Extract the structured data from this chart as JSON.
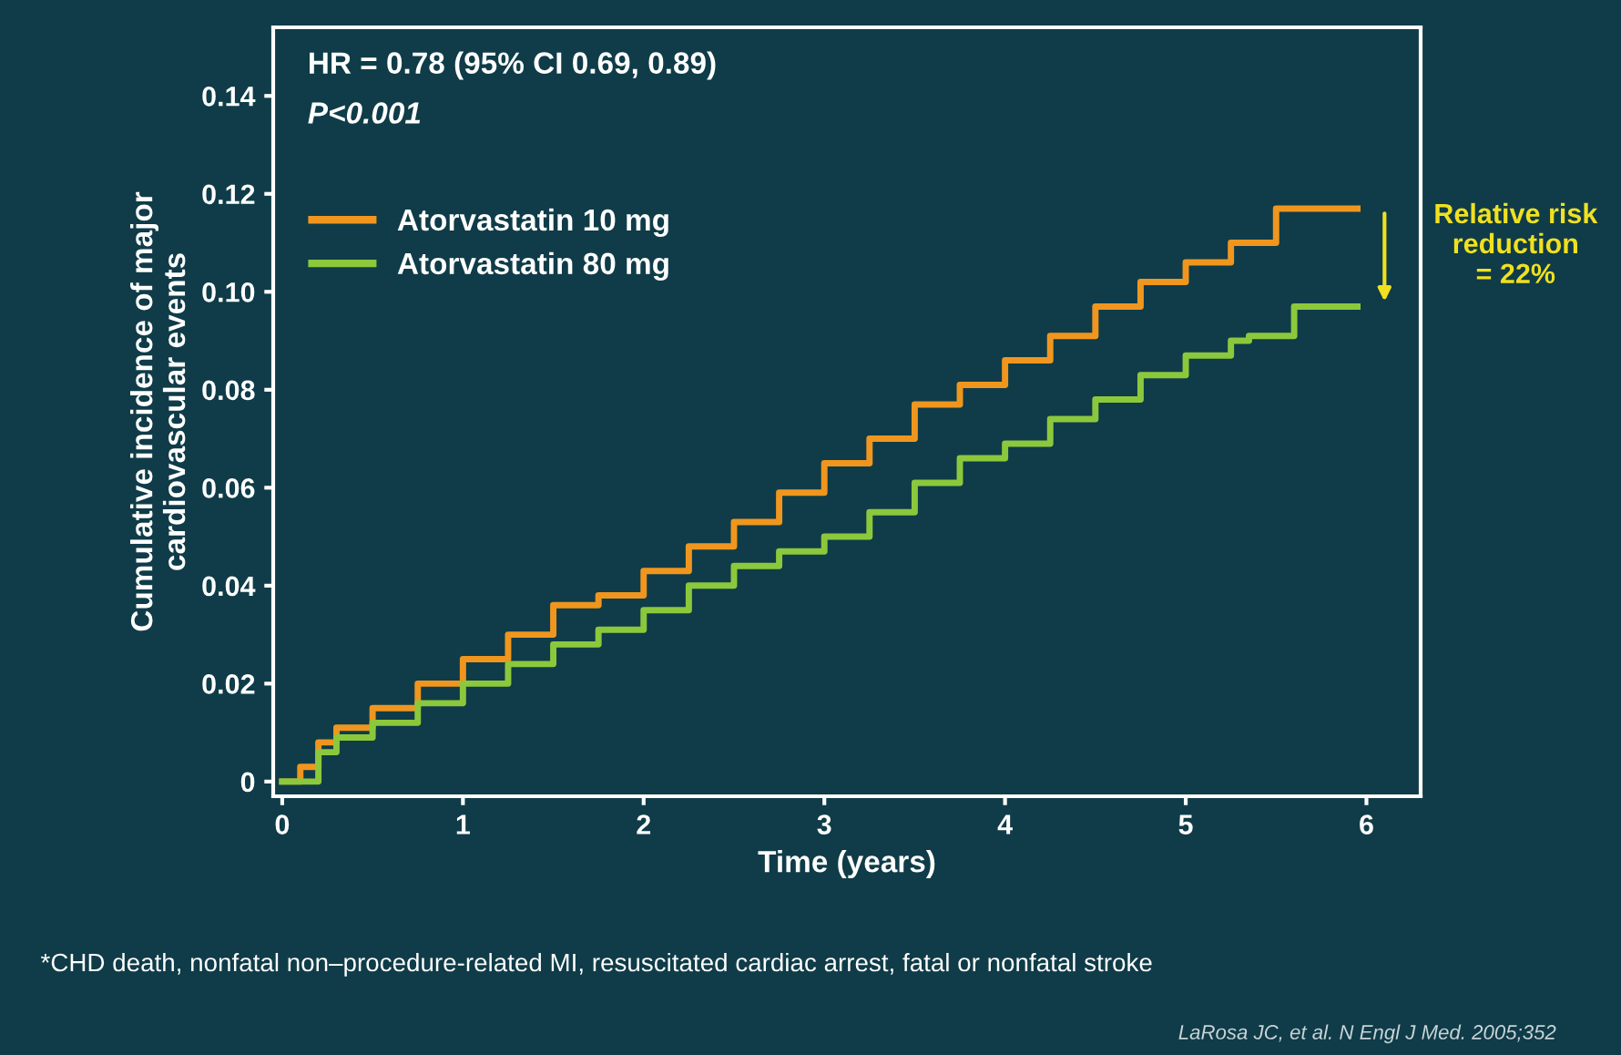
{
  "chart_data": {
    "type": "step",
    "xlabel": "Time (years)",
    "ylabel": "Cumulative incidence of major\ncardiovascular events",
    "xlim": [
      -0.05,
      6.3
    ],
    "ylim": [
      -0.003,
      0.154
    ],
    "xticks": [
      0,
      1,
      2,
      3,
      4,
      5,
      6
    ],
    "yticks": [
      {
        "value": 0,
        "label": "0"
      },
      {
        "value": 0.02,
        "label": "0.02"
      },
      {
        "value": 0.04,
        "label": "0.04"
      },
      {
        "value": 0.06,
        "label": "0.06"
      },
      {
        "value": 0.08,
        "label": "0.08"
      },
      {
        "value": 0.1,
        "label": "0.10"
      },
      {
        "value": 0.12,
        "label": "0.12"
      },
      {
        "value": 0.14,
        "label": "0.14"
      }
    ],
    "grid": false,
    "legend": "top left",
    "marker": "none",
    "line_style": "solid",
    "series": [
      {
        "name": "Atorvastatin 10 mg",
        "color": "#f0961e",
        "x": [
          0,
          0.1,
          0.2,
          0.3,
          0.5,
          0.75,
          1,
          1.25,
          1.5,
          1.75,
          2,
          2.25,
          2.5,
          2.75,
          3,
          3.25,
          3.5,
          3.75,
          4,
          4.25,
          4.5,
          4.75,
          5,
          5.25,
          5.5,
          5.95
        ],
        "values": [
          0,
          0.003,
          0.008,
          0.011,
          0.015,
          0.02,
          0.025,
          0.03,
          0.036,
          0.038,
          0.043,
          0.048,
          0.053,
          0.059,
          0.065,
          0.07,
          0.077,
          0.081,
          0.086,
          0.091,
          0.097,
          0.102,
          0.106,
          0.11,
          0.117,
          0.117
        ]
      },
      {
        "name": "Atorvastatin 80 mg",
        "color": "#8cc83c",
        "x": [
          0,
          0.2,
          0.3,
          0.5,
          0.75,
          1,
          1.25,
          1.5,
          1.75,
          2,
          2.25,
          2.5,
          2.75,
          3,
          3.25,
          3.5,
          3.75,
          4,
          4.25,
          4.5,
          4.75,
          5,
          5.25,
          5.35,
          5.6,
          5.95
        ],
        "values": [
          0,
          0.006,
          0.009,
          0.012,
          0.016,
          0.02,
          0.024,
          0.028,
          0.031,
          0.035,
          0.04,
          0.044,
          0.047,
          0.05,
          0.055,
          0.061,
          0.066,
          0.069,
          0.074,
          0.078,
          0.083,
          0.087,
          0.09,
          0.091,
          0.097,
          0.097
        ]
      }
    ],
    "annotations": [
      "HR = 0.78 (95% CI 0.69, 0.89)",
      "P<0.001",
      "Relative risk\nreduction\n= 22%",
      "*CHD death, nonfatal non–procedure-related MI, resuscitated cardiac arrest, fatal or nonfatal stroke",
      "LaRosa JC, et al. N Engl J Med. 2005;352"
    ]
  }
}
